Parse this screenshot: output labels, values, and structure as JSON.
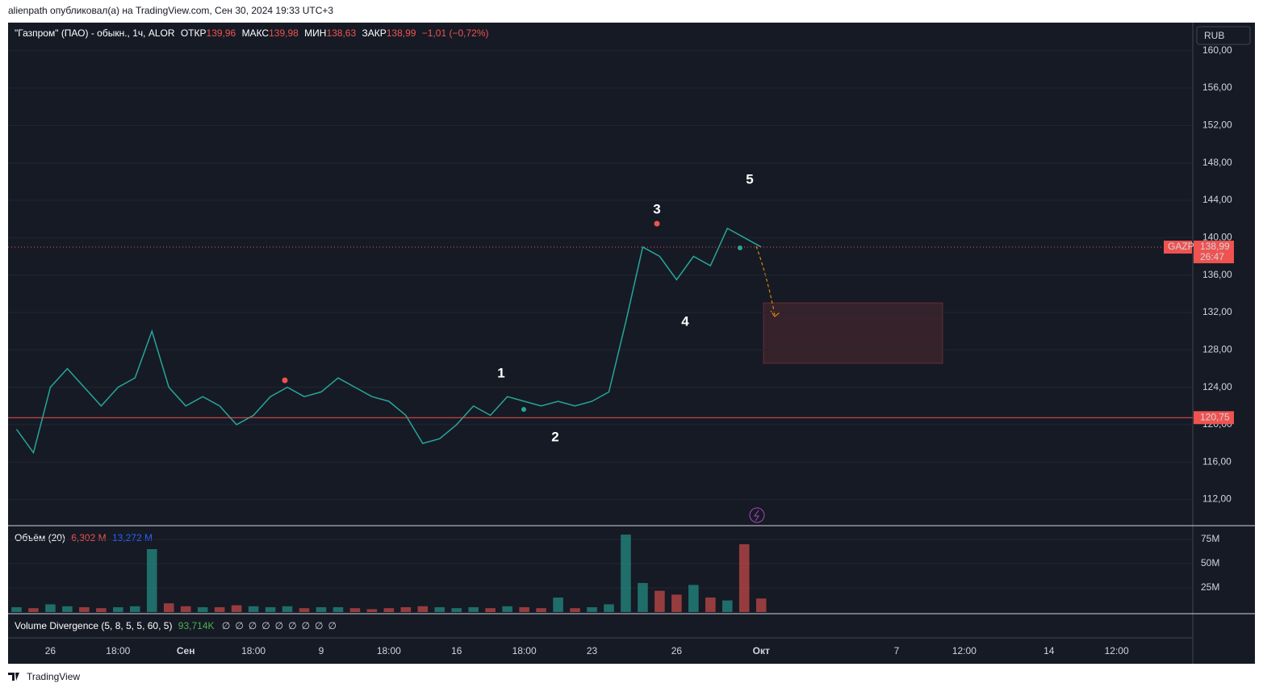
{
  "header": {
    "publisher": "alienpath опубликовал(а) на TradingView.com, Сен 30, 2024 19:33 UTC+3"
  },
  "chart_data": [
    {
      "type": "line",
      "title": "\"Газпром\" (ПАО) - обыкн., 1ч, ALOR",
      "ohlc": [
        {
          "label": "ОТКР",
          "value": "139,96"
        },
        {
          "label": "МАКС",
          "value": "139,98"
        },
        {
          "label": "МИН",
          "value": "138,63"
        },
        {
          "label": "ЗАКР",
          "value": "138,99"
        }
      ],
      "change": "−1,01 (−0,72%)",
      "currency": "RUB",
      "categories": [
        null,
        null,
        "26",
        null,
        null,
        null,
        "18:00",
        null,
        null,
        null,
        "Сен",
        null,
        null,
        null,
        "18:00",
        null,
        null,
        null,
        "9",
        null,
        null,
        null,
        "18:00",
        null,
        null,
        null,
        "16",
        null,
        null,
        null,
        "18:00",
        null,
        null,
        null,
        "23",
        null,
        null,
        null,
        null,
        "26",
        null,
        null,
        null,
        null,
        "Окт",
        null,
        null,
        null,
        null,
        null,
        null,
        null,
        "7",
        null,
        null,
        null,
        "12:00",
        null,
        null,
        null,
        null,
        "14",
        null,
        null,
        null,
        "12:00",
        null,
        null,
        null,
        null
      ],
      "series": [
        {
          "name": "GAZP",
          "color": "#26a69a",
          "values": [
            119.5,
            117,
            124,
            126,
            124,
            122,
            124,
            125,
            130,
            124,
            122,
            123,
            122,
            120,
            121,
            123,
            124,
            123,
            123.5,
            125,
            124,
            123,
            122.5,
            121,
            118,
            118.5,
            120,
            122,
            121,
            123,
            122.5,
            122,
            122.5,
            122,
            122.5,
            123.5,
            131,
            139,
            138,
            135.5,
            138,
            137,
            141,
            140,
            139,
            null,
            null,
            null,
            null,
            null,
            null,
            null,
            null,
            null,
            null,
            null,
            null,
            null,
            null,
            null,
            null,
            null,
            null,
            null,
            null,
            null,
            null,
            null,
            null,
            null
          ]
        }
      ],
      "ylim": [
        109.2,
        163
      ],
      "yticks": [
        {
          "value": 112,
          "label": "112,00"
        },
        {
          "value": 116,
          "label": "116,00"
        },
        {
          "value": 120,
          "label": "120,00"
        },
        {
          "value": 124,
          "label": "124,00"
        },
        {
          "value": 128,
          "label": "128,00"
        },
        {
          "value": 132,
          "label": "132,00"
        },
        {
          "value": 136,
          "label": "136,00"
        },
        {
          "value": 140,
          "label": "140,00"
        },
        {
          "value": 144,
          "label": "144,00"
        },
        {
          "value": 148,
          "label": "148,00"
        },
        {
          "value": 152,
          "label": "152,00"
        },
        {
          "value": 156,
          "label": "156,00"
        },
        {
          "value": 160,
          "label": "160,00"
        }
      ],
      "price_lines": [
        {
          "value": 138.99,
          "label": "138,99",
          "countdown": "26:47",
          "color": "#ef5350",
          "dotted": true
        },
        {
          "value": 120.75,
          "label": "120,75",
          "color": "#ef5350",
          "dotted": false
        }
      ],
      "annotations": [
        "1",
        "2",
        "3",
        "4",
        "5"
      ]
    },
    {
      "type": "bar",
      "title": "Объём (20)",
      "legend_values": [
        {
          "text": "6,302 M",
          "color": "#ef5350"
        },
        {
          "text": "13,272 M",
          "color": "#2962ff"
        }
      ],
      "up_color": "#26a69a",
      "down_color": "#ef5350",
      "values": [
        5,
        4,
        8,
        6,
        5,
        4,
        5,
        6,
        65,
        9,
        6,
        5,
        5,
        7,
        6,
        5,
        6,
        4,
        5,
        5,
        4,
        3,
        4,
        5,
        6,
        5,
        4,
        5,
        4,
        6,
        5,
        4,
        15,
        4,
        5,
        8,
        80,
        30,
        22,
        18,
        28,
        15,
        12,
        70,
        14,
        null,
        null,
        null,
        null,
        null,
        null,
        null,
        null,
        null,
        null,
        null,
        null,
        null,
        null,
        null,
        null,
        null,
        null,
        null,
        null,
        null,
        null,
        null,
        null,
        null
      ],
      "ylim": [
        0,
        89.2
      ],
      "yticks": [
        {
          "value": 25,
          "label": "25M"
        },
        {
          "value": 50,
          "label": "50M"
        },
        {
          "value": 75,
          "label": "75M"
        }
      ]
    }
  ],
  "divergence": {
    "title": "Volume Divergence (5, 8, 5, 5, 60, 5)",
    "value": "93,714K",
    "slots": [
      "∅",
      "∅",
      "∅",
      "∅",
      "∅",
      "∅",
      "∅",
      "∅",
      "∅"
    ]
  },
  "footer": {
    "brand": "TradingView"
  }
}
